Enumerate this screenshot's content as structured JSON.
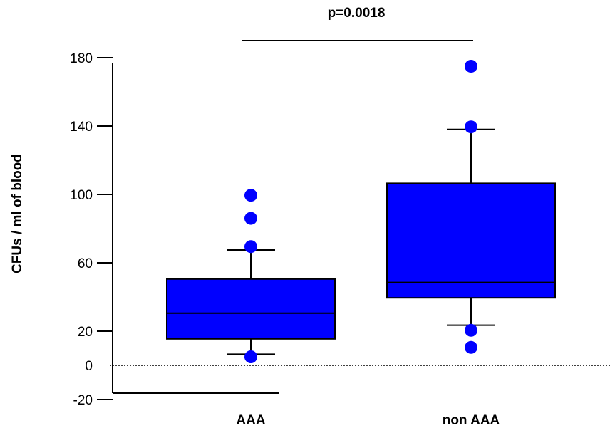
{
  "chart_data": {
    "type": "box",
    "ylabel": "CFUs / ml of blood",
    "yticks": [
      180,
      140,
      100,
      60,
      20,
      0,
      -20
    ],
    "ylim": [
      -20,
      180
    ],
    "reference_line": {
      "y": 0,
      "style": "dotted"
    },
    "box_color": "#0000ff",
    "annotation": {
      "text": "p=0.0018",
      "between": [
        "AAA",
        "non AAA"
      ]
    },
    "categories": [
      "AAA",
      "non AAA"
    ],
    "boxes": [
      {
        "category": "AAA",
        "whisker_low": 6.5,
        "q1": 15.5,
        "median": 30.5,
        "q3": 50.5,
        "whisker_high": 67.5,
        "outliers": [
          5,
          69.5,
          86,
          99.5
        ]
      },
      {
        "category": "non AAA",
        "whisker_low": 23.5,
        "q1": 39.5,
        "median": 48.5,
        "q3": 106.5,
        "whisker_high": 138,
        "outliers": [
          10.5,
          20.5,
          139.5,
          175
        ]
      }
    ]
  }
}
